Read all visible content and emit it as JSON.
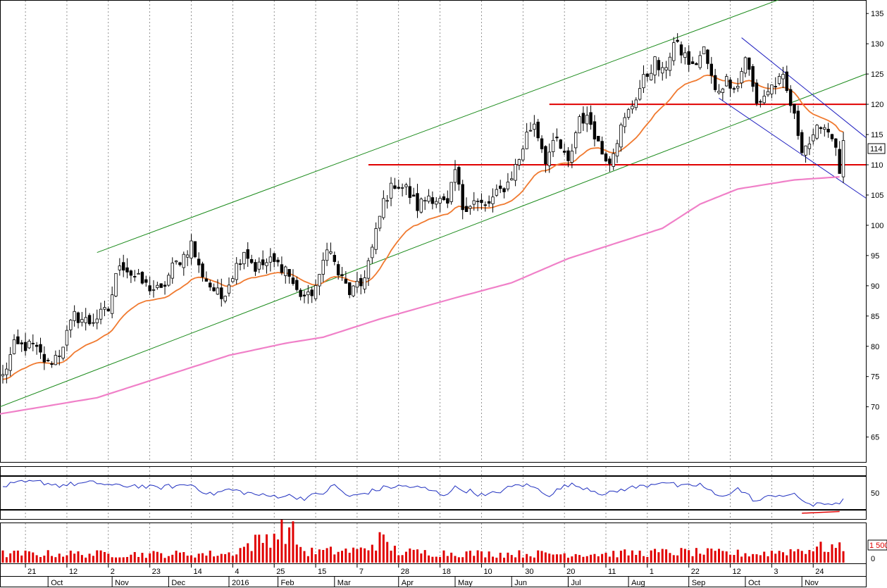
{
  "chart_data": {
    "type": "candlestick",
    "last_price_label": "114",
    "volume_label": "1 500",
    "price_axis": {
      "ylim": [
        61,
        137
      ],
      "ticks": [
        "65",
        "70",
        "75",
        "80",
        "85",
        "90",
        "95",
        "100",
        "105",
        "110",
        "115",
        "120",
        "125",
        "130",
        "135"
      ]
    },
    "rsi_axis": {
      "ylim": [
        20,
        80
      ],
      "ticks": [
        "50"
      ],
      "levels": [
        70,
        30
      ]
    },
    "volume_axis": {
      "ylim": [
        0,
        2200
      ],
      "ticks": [
        "0"
      ]
    },
    "x_ticks_top": [
      "21",
      "12",
      "2",
      "23",
      "14",
      "4",
      "25",
      "15",
      "7",
      "28",
      "18",
      "10",
      "30",
      "20",
      "11",
      "1",
      "22",
      "12",
      "3",
      "24"
    ],
    "x_ticks_bottom": [
      "Oct",
      "Nov",
      "Dec",
      "2016",
      "Feb",
      "Mar",
      "Apr",
      "May",
      "Jun",
      "Jul",
      "Aug",
      "Sep",
      "Oct",
      "Nov"
    ],
    "colors": {
      "candles": "#000000",
      "ema_fast": "#f07a30",
      "ma_slow": "#f080c8",
      "channel": "#1a8a1a",
      "resistance": "#e00000",
      "down_channel": "#2020c0",
      "rsi": "#2030c0",
      "volume": "#e00000"
    },
    "horizontal_levels": [
      110,
      120
    ],
    "close_anchors": [
      [
        0,
        75
      ],
      [
        3,
        80
      ],
      [
        8,
        80
      ],
      [
        12,
        77
      ],
      [
        15,
        79
      ],
      [
        19,
        85
      ],
      [
        23,
        84
      ],
      [
        28,
        86
      ],
      [
        31,
        94
      ],
      [
        34,
        92
      ],
      [
        38,
        90
      ],
      [
        42,
        89
      ],
      [
        45,
        93
      ],
      [
        48,
        95
      ],
      [
        50,
        97
      ],
      [
        52,
        93
      ],
      [
        55,
        90
      ],
      [
        58,
        88
      ],
      [
        61,
        92
      ],
      [
        64,
        96
      ],
      [
        67,
        93
      ],
      [
        71,
        94
      ],
      [
        75,
        93
      ],
      [
        78,
        89
      ],
      [
        81,
        88
      ],
      [
        84,
        91
      ],
      [
        86,
        97
      ],
      [
        89,
        92
      ],
      [
        92,
        89
      ],
      [
        95,
        90
      ],
      [
        98,
        96
      ],
      [
        101,
        104
      ],
      [
        104,
        107
      ],
      [
        107,
        106
      ],
      [
        110,
        103
      ],
      [
        113,
        105
      ],
      [
        116,
        104
      ],
      [
        118,
        103
      ],
      [
        120,
        109
      ],
      [
        122,
        103
      ],
      [
        125,
        104
      ],
      [
        128,
        103
      ],
      [
        131,
        105
      ],
      [
        134,
        107
      ],
      [
        137,
        111
      ],
      [
        139,
        115
      ],
      [
        141,
        117
      ],
      [
        144,
        111
      ],
      [
        147,
        114
      ],
      [
        150,
        110
      ],
      [
        153,
        118
      ],
      [
        156,
        117
      ],
      [
        159,
        112
      ],
      [
        161,
        111
      ],
      [
        164,
        116
      ],
      [
        167,
        120
      ],
      [
        170,
        124
      ],
      [
        173,
        127
      ],
      [
        175,
        125
      ],
      [
        178,
        130
      ],
      [
        181,
        128
      ],
      [
        183,
        126
      ],
      [
        186,
        129
      ],
      [
        189,
        122
      ],
      [
        192,
        124
      ],
      [
        195,
        123
      ],
      [
        197,
        128
      ],
      [
        200,
        120
      ],
      [
        204,
        123
      ],
      [
        207,
        124
      ],
      [
        209,
        120
      ],
      [
        212,
        113
      ],
      [
        215,
        114
      ],
      [
        217,
        117
      ],
      [
        220,
        115
      ],
      [
        222,
        109
      ],
      [
        223,
        113
      ]
    ],
    "rsi_anchors": [
      [
        0,
        58
      ],
      [
        5,
        62
      ],
      [
        10,
        63
      ],
      [
        15,
        59
      ],
      [
        20,
        61
      ],
      [
        25,
        62
      ],
      [
        30,
        58
      ],
      [
        35,
        59
      ],
      [
        40,
        56
      ],
      [
        45,
        58
      ],
      [
        50,
        60
      ],
      [
        55,
        48
      ],
      [
        60,
        54
      ],
      [
        65,
        50
      ],
      [
        70,
        46
      ],
      [
        75,
        47
      ],
      [
        80,
        44
      ],
      [
        85,
        50
      ],
      [
        88,
        59
      ],
      [
        92,
        45
      ],
      [
        97,
        51
      ],
      [
        102,
        57
      ],
      [
        107,
        58
      ],
      [
        112,
        55
      ],
      [
        117,
        48
      ],
      [
        120,
        56
      ],
      [
        124,
        52
      ],
      [
        128,
        46
      ],
      [
        133,
        54
      ],
      [
        137,
        60
      ],
      [
        140,
        58
      ],
      [
        145,
        48
      ],
      [
        150,
        60
      ],
      [
        155,
        56
      ],
      [
        160,
        48
      ],
      [
        165,
        55
      ],
      [
        170,
        58
      ],
      [
        175,
        64
      ],
      [
        180,
        57
      ],
      [
        185,
        60
      ],
      [
        190,
        45
      ],
      [
        195,
        55
      ],
      [
        200,
        40
      ],
      [
        205,
        48
      ],
      [
        210,
        47
      ],
      [
        215,
        35
      ],
      [
        218,
        37
      ],
      [
        222,
        39
      ],
      [
        223,
        41
      ]
    ],
    "volume_anchors": [
      [
        0,
        500
      ],
      [
        20,
        500
      ],
      [
        40,
        480
      ],
      [
        60,
        500
      ],
      [
        76,
        2000
      ],
      [
        80,
        600
      ],
      [
        95,
        700
      ],
      [
        100,
        1300
      ],
      [
        105,
        600
      ],
      [
        130,
        500
      ],
      [
        160,
        500
      ],
      [
        180,
        600
      ],
      [
        200,
        500
      ],
      [
        220,
        900
      ],
      [
        223,
        750
      ]
    ]
  }
}
